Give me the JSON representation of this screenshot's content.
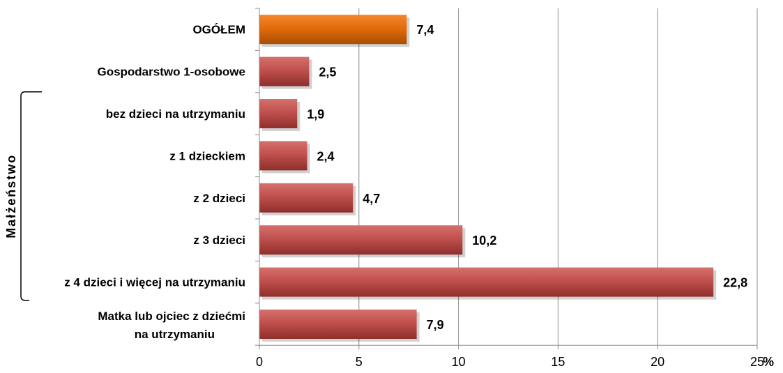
{
  "chart_data": {
    "type": "bar",
    "orientation": "horizontal",
    "categories": [
      "OGÓŁEM",
      "Gospodarstwo 1-osobowe",
      "bez dzieci na utrzymaniu",
      "z 1 dzieckiem",
      "z 2 dzieci",
      "z 3 dzieci",
      "z 4 dzieci i więcej na utrzymaniu",
      "Matka lub ojciec z dziećmi na utrzymaniu"
    ],
    "values": [
      7.4,
      2.5,
      1.9,
      2.4,
      4.7,
      10.2,
      22.8,
      7.9
    ],
    "value_labels": [
      "7,4",
      "2,5",
      "1,9",
      "2,4",
      "4,7",
      "10,2",
      "22,8",
      "7,9"
    ],
    "xlim": [
      0,
      25
    ],
    "ticks": [
      0,
      5,
      10,
      15,
      20,
      25
    ],
    "tick_labels": [
      "0",
      "5",
      "10",
      "15",
      "20",
      "25"
    ],
    "unit": "%",
    "grid": true,
    "colors": {
      "total": "#E36C0A",
      "default": "#C0504D"
    },
    "highlight_index": 0,
    "group": {
      "label": "Małżeństwo",
      "start_index": 2,
      "end_index": 6
    }
  }
}
